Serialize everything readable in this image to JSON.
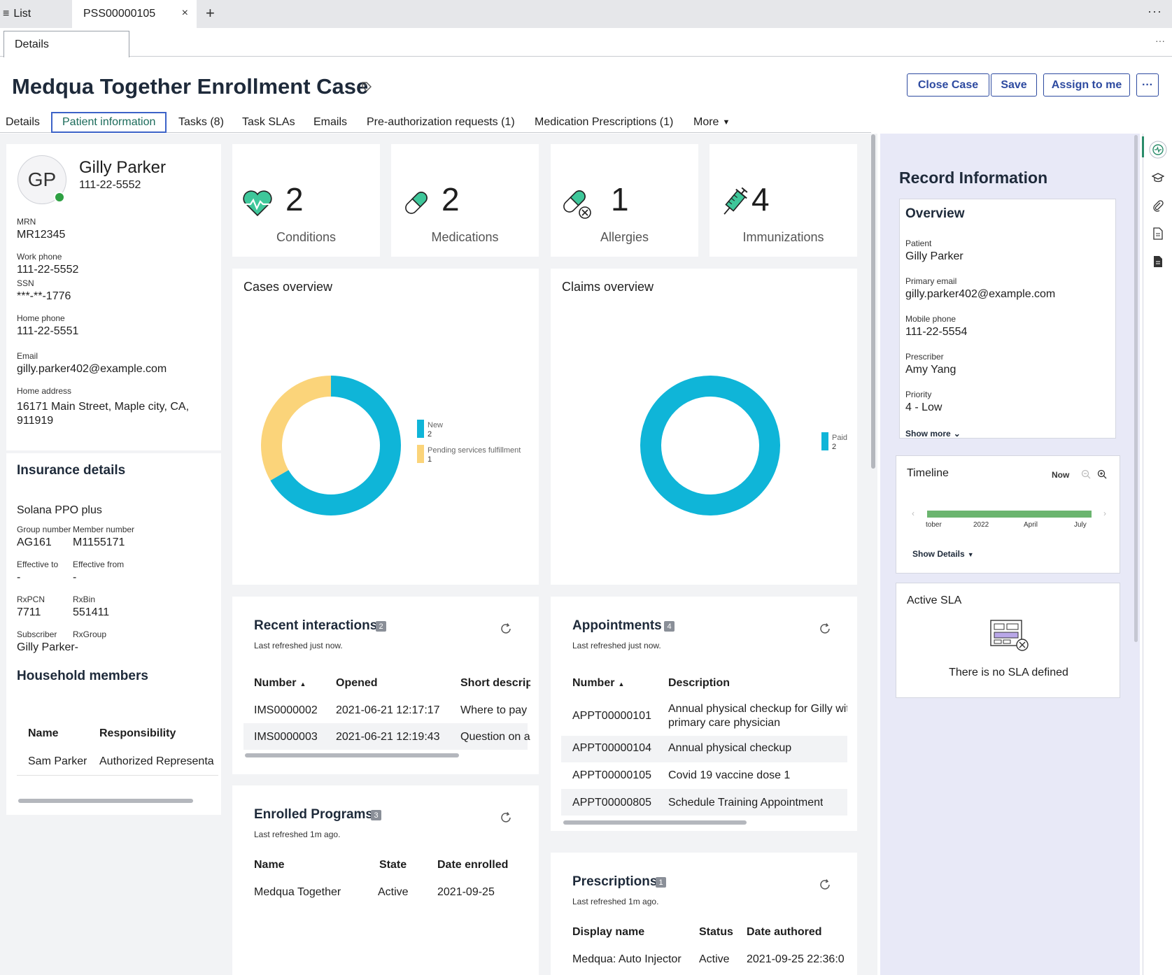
{
  "window": {
    "list_tab": "List",
    "case_tab": "PSS00000105",
    "close_glyph": "×",
    "new_tab_glyph": "+",
    "more_glyph": "···",
    "sub_tab": "Details"
  },
  "header": {
    "title": "Medqua Together Enrollment Case",
    "close_case": "Close Case",
    "save": "Save",
    "assign": "Assign to me",
    "more": "···"
  },
  "tabs": [
    {
      "label": "Details"
    },
    {
      "label": "Patient information"
    },
    {
      "label": "Tasks (8)"
    },
    {
      "label": "Task SLAs"
    },
    {
      "label": "Emails"
    },
    {
      "label": "Pre-authorization requests (1)"
    },
    {
      "label": "Medication Prescriptions (1)"
    },
    {
      "label": "More"
    }
  ],
  "patient": {
    "initials": "GP",
    "name": "Gilly Parker",
    "phone": "111-22-5552",
    "mrn_label": "MRN",
    "mrn": "MR12345",
    "work_phone_label": "Work phone",
    "work_phone": "111-22-5552",
    "ssn_label": "SSN",
    "ssn": "***-**-1776",
    "home_phone_label": "Home phone",
    "home_phone": "111-22-5551",
    "email_label": "Email",
    "email": "gilly.parker402@example.com",
    "address_label": "Home address",
    "address_line1": "16171 Main Street, Maple city, CA,",
    "address_line2": "911919"
  },
  "insurance": {
    "title": "Insurance details",
    "plan": "Solana PPO plus",
    "group_label": "Group number",
    "group": "AG161",
    "member_label": "Member number",
    "member": "M1155171",
    "eff_to_label": "Effective to",
    "eff_to": "-",
    "eff_from_label": "Effective from",
    "eff_from": "-",
    "rxpcn_label": "RxPCN",
    "rxpcn": "7711",
    "rxbin_label": "RxBin",
    "rxbin": "551411",
    "subscriber_label": "Subscriber",
    "subscriber": "Gilly Parker-",
    "rxgroup_label": "RxGroup"
  },
  "household": {
    "title": "Household members",
    "col_name": "Name",
    "col_resp": "Responsibility",
    "row_name": "Sam Parker",
    "row_resp": "Authorized Representa"
  },
  "stats": [
    {
      "value": "2",
      "label": "Conditions",
      "icon": "heart-pulse-icon"
    },
    {
      "value": "2",
      "label": "Medications",
      "icon": "pill-icon"
    },
    {
      "value": "1",
      "label": "Allergies",
      "icon": "pill-allergy-icon"
    },
    {
      "value": "4",
      "label": "Immunizations",
      "icon": "syringe-icon"
    }
  ],
  "cases_overview": {
    "title": "Cases overview"
  },
  "claims_overview": {
    "title": "Claims overview"
  },
  "chart_data": [
    {
      "type": "pie",
      "title": "Cases overview",
      "donut": true,
      "categories": [
        "New",
        "Pending services fulfillment"
      ],
      "values": [
        2,
        1
      ],
      "colors": [
        "#0fb5d8",
        "#fbd47a"
      ],
      "legend": "right"
    },
    {
      "type": "pie",
      "title": "Claims overview",
      "donut": true,
      "categories": [
        "Paid"
      ],
      "values": [
        2
      ],
      "colors": [
        "#0fb5d8"
      ],
      "legend": "right"
    }
  ],
  "recent": {
    "title": "Recent interactions",
    "count": "2",
    "refreshed": "Last refreshed just now.",
    "cols": [
      "Number",
      "Opened",
      "Short descripti"
    ],
    "rows": [
      {
        "number": "IMS0000002",
        "opened": "2021-06-21 12:17:17",
        "desc": "Where to pay"
      },
      {
        "number": "IMS0000003",
        "opened": "2021-06-21 12:19:43",
        "desc": "Question on a"
      }
    ]
  },
  "appointments": {
    "title": "Appointments",
    "count": "4",
    "refreshed": "Last refreshed just now.",
    "cols": [
      "Number",
      "Description"
    ],
    "rows": [
      {
        "number": "APPT00000101",
        "desc1": "Annual physical checkup for Gilly wit",
        "desc2": "primary care physician"
      },
      {
        "number": "APPT00000104",
        "desc1": "Annual physical checkup",
        "desc2": ""
      },
      {
        "number": "APPT00000105",
        "desc1": "Covid 19 vaccine dose 1",
        "desc2": ""
      },
      {
        "number": "APPT00000805",
        "desc1": "Schedule Training Appointment",
        "desc2": ""
      }
    ]
  },
  "programs": {
    "title": "Enrolled Programs",
    "count": "3",
    "refreshed": "Last refreshed 1m ago.",
    "cols": [
      "Name",
      "State",
      "Date enrolled"
    ],
    "row": {
      "name": "Medqua Together",
      "state": "Active",
      "date": "2021-09-25"
    }
  },
  "prescriptions": {
    "title": "Prescriptions",
    "count": "1",
    "refreshed": "Last refreshed 1m ago.",
    "cols": [
      "Display name",
      "Status",
      "Date authored"
    ],
    "row": {
      "name": "Medqua: Auto Injector",
      "status": "Active",
      "date": "2021-09-25 22:36:0"
    }
  },
  "record": {
    "title": "Record Information",
    "overview": "Overview",
    "patient_label": "Patient",
    "patient": "Gilly Parker",
    "email_label": "Primary email",
    "email": "gilly.parker402@example.com",
    "mobile_label": "Mobile phone",
    "mobile": "111-22-5554",
    "prescriber_label": "Prescriber",
    "prescriber": "Amy Yang",
    "priority_label": "Priority",
    "priority": "4 - Low",
    "show_more": "Show more"
  },
  "timeline": {
    "title": "Timeline",
    "now": "Now",
    "ticks": [
      "tober",
      "2022",
      "April",
      "July"
    ],
    "show_details": "Show Details"
  },
  "sla": {
    "title": "Active SLA",
    "empty": "There is no SLA defined"
  }
}
